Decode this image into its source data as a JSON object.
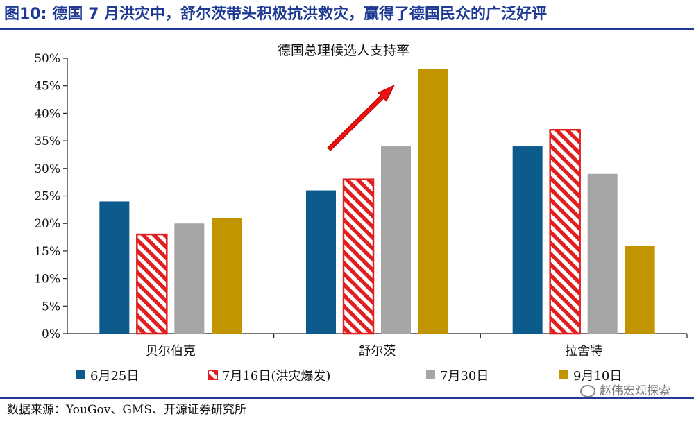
{
  "figure": {
    "number": "图10:",
    "title": "德国 7 月洪灾中，舒尔茨带头积极抗洪救灾，赢得了德国民众的广泛好评"
  },
  "source": "数据来源：YouGov、GMS、开源证券研究所",
  "watermark": "赵伟宏观探索",
  "colors": {
    "series1": "#0d5a8c",
    "series2": "#e02020",
    "series3": "#a6a6a6",
    "series4": "#c29500",
    "arrow": "#ee1111",
    "title_blue": "#1f3a93"
  },
  "icons": [
    "wechat-icon",
    "red-arrow-icon"
  ],
  "chart_data": {
    "type": "bar",
    "title": "德国总理候选人支持率",
    "categories": [
      "贝尔伯克",
      "舒尔茨",
      "拉舍特"
    ],
    "series": [
      {
        "name": "6月25日",
        "values": [
          24,
          26,
          34
        ],
        "pattern": "solid"
      },
      {
        "name": "7月16日(洪灾爆发)",
        "values": [
          18,
          28,
          37
        ],
        "pattern": "red-stripes"
      },
      {
        "name": "7月30日",
        "values": [
          20,
          34,
          29
        ],
        "pattern": "solid"
      },
      {
        "name": "9月10日",
        "values": [
          21,
          48,
          16
        ],
        "pattern": "solid"
      }
    ],
    "yticks": [
      "0%",
      "5%",
      "10%",
      "15%",
      "20%",
      "25%",
      "30%",
      "35%",
      "40%",
      "45%",
      "50%"
    ],
    "ylim": [
      0,
      50
    ],
    "grid": false,
    "legend_position": "bottom",
    "annotation": "red arrow pointing up over 舒尔茨 bars"
  }
}
